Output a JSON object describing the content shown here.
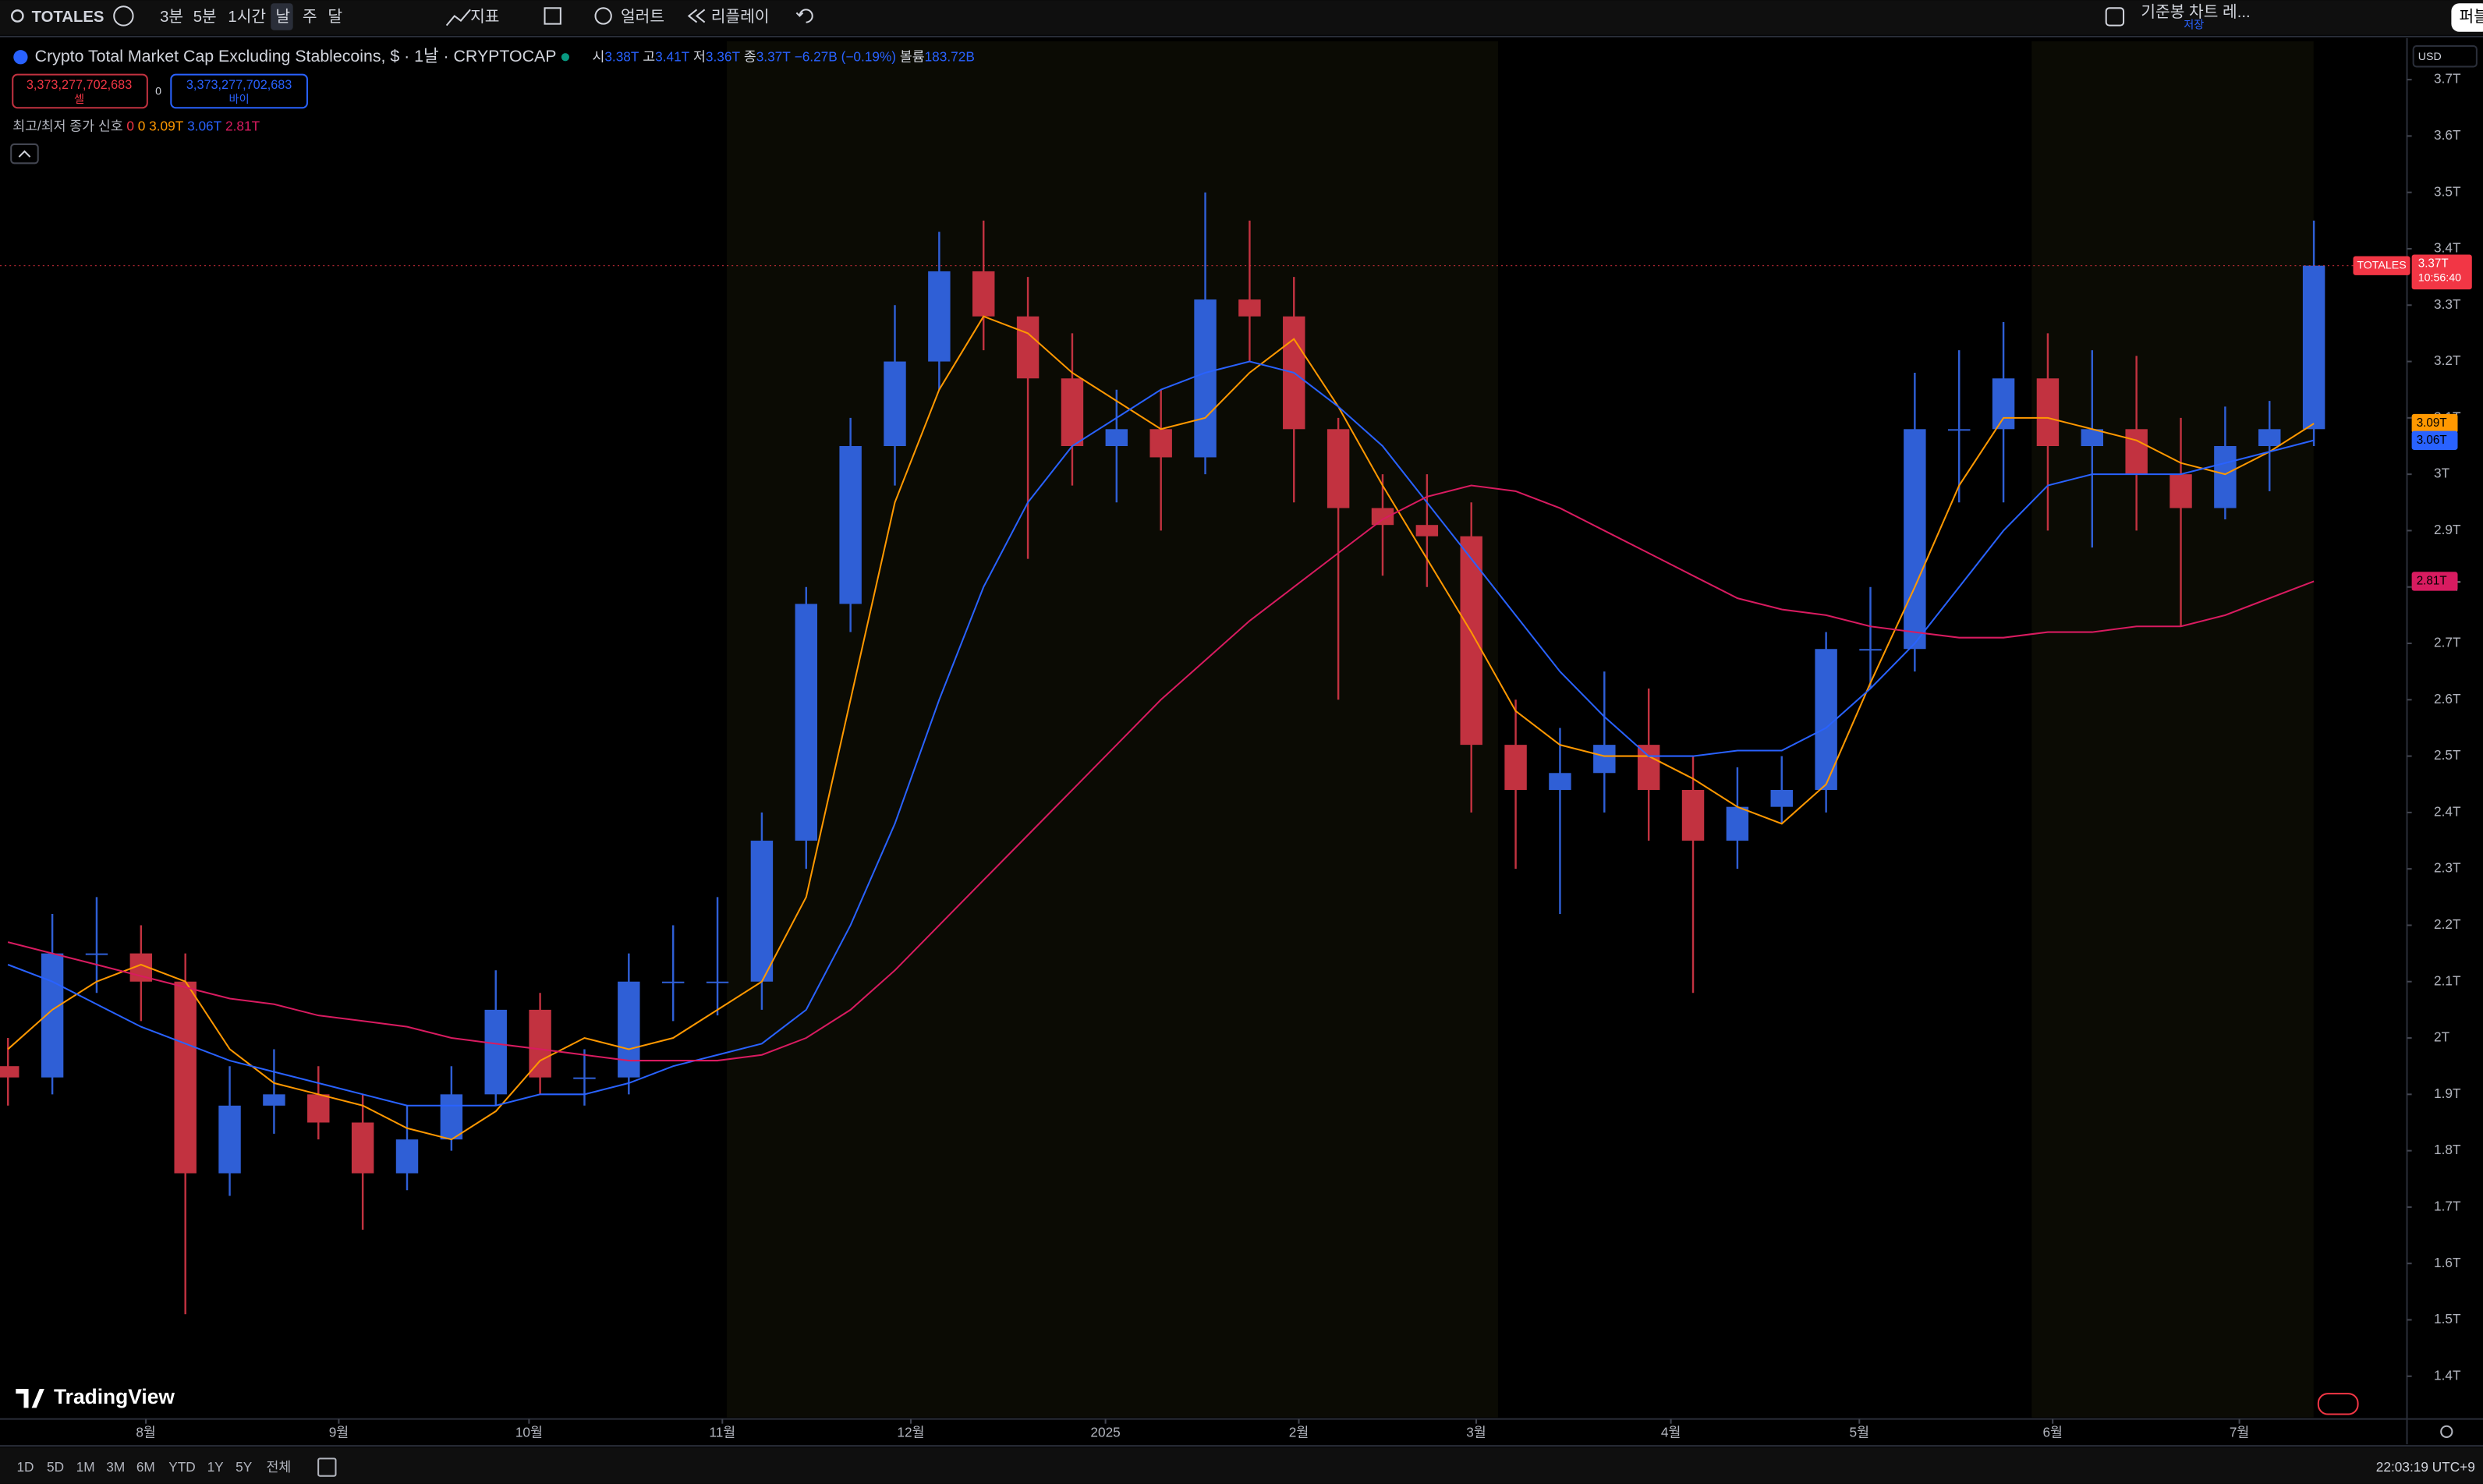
{
  "toolbar": {
    "symbol": "TOTALES",
    "intervals": [
      "3분",
      "5분",
      "1시간",
      "날",
      "주",
      "달"
    ],
    "indicators": "지표",
    "alert": "얼러트",
    "replay": "리플레이",
    "layout": "기준봉 차트 레...",
    "save": "저장",
    "publish": "퍼블"
  },
  "header": {
    "title": "Crypto Total Market Cap Excluding Stablecoins, $ · 1날 · CRYPTOCAP",
    "ohlc": [
      {
        "label": "시",
        "value": "3.38T"
      },
      {
        "label": "고",
        "value": "3.41T"
      },
      {
        "label": "저",
        "value": "3.36T"
      },
      {
        "label": "종",
        "value": "3.37T"
      }
    ],
    "change": "−6.27B (−0.19%)",
    "volume_label": "볼륨",
    "volume": "183.72B",
    "sell": {
      "price": "3,373,277,702,683",
      "label": "셀"
    },
    "spread": "0",
    "buy": {
      "price": "3,373,277,702,683",
      "label": "바이"
    },
    "indicator": {
      "name": "최고/최저 종가 신호",
      "values": [
        "0",
        "0",
        "3.09T",
        "3.06T",
        "2.81T"
      ]
    }
  },
  "currency": "USD",
  "price_badge": {
    "symbol": "TOTALES",
    "price": "3.37T",
    "countdown": "10:56:40"
  },
  "logo": "TradingView",
  "bottom": {
    "ranges": [
      "1D",
      "5D",
      "1M",
      "3M",
      "6M",
      "YTD",
      "1Y",
      "5Y",
      "전체"
    ],
    "clock": "22:03:19 UTC+9"
  },
  "chart_data": {
    "type": "candlestick",
    "x": [
      0,
      1,
      2,
      3,
      4,
      5,
      6,
      7,
      8,
      9,
      10,
      11,
      12,
      13,
      14,
      15,
      16,
      17,
      18,
      19,
      20,
      21,
      22,
      23,
      24,
      25,
      26,
      27,
      28,
      29,
      30,
      31,
      32,
      33,
      34,
      35,
      36,
      37,
      38,
      39,
      40,
      41,
      42,
      43,
      44,
      45,
      46,
      47,
      48,
      49,
      50,
      51,
      52
    ],
    "open": [
      1.95,
      1.93,
      2.15,
      2.15,
      2.1,
      1.76,
      1.88,
      1.9,
      1.85,
      1.76,
      1.82,
      1.9,
      2.05,
      1.93,
      1.93,
      2.1,
      2.1,
      2.1,
      2.35,
      2.77,
      3.05,
      3.2,
      3.36,
      3.28,
      3.17,
      3.05,
      3.08,
      3.03,
      3.31,
      3.28,
      3.08,
      2.94,
      2.91,
      2.89,
      2.52,
      2.44,
      2.47,
      2.52,
      2.44,
      2.35,
      2.41,
      2.44,
      2.69,
      2.69,
      3.08,
      3.08,
      3.17,
      3.05,
      3.08,
      3.0,
      2.94,
      3.05,
      3.08
    ],
    "high": [
      2.0,
      2.22,
      2.25,
      2.2,
      2.15,
      1.95,
      1.98,
      1.95,
      1.9,
      1.88,
      1.95,
      2.12,
      2.08,
      1.98,
      2.15,
      2.2,
      2.25,
      2.4,
      2.8,
      3.1,
      3.3,
      3.43,
      3.45,
      3.35,
      3.25,
      3.15,
      3.15,
      3.5,
      3.45,
      3.35,
      3.1,
      3.0,
      3.0,
      2.95,
      2.6,
      2.55,
      2.65,
      2.62,
      2.5,
      2.48,
      2.5,
      2.72,
      2.8,
      3.18,
      3.22,
      3.27,
      3.25,
      3.22,
      3.21,
      3.1,
      3.12,
      3.13,
      3.45
    ],
    "low": [
      1.88,
      1.9,
      2.08,
      2.03,
      1.51,
      1.72,
      1.83,
      1.82,
      1.66,
      1.73,
      1.8,
      1.88,
      1.9,
      1.88,
      1.9,
      2.03,
      2.04,
      2.05,
      2.3,
      2.72,
      2.98,
      3.15,
      3.22,
      2.85,
      2.98,
      2.95,
      2.9,
      3.0,
      3.2,
      2.95,
      2.6,
      2.82,
      2.8,
      2.4,
      2.3,
      2.22,
      2.4,
      2.35,
      2.08,
      2.3,
      2.38,
      2.4,
      2.62,
      2.65,
      2.95,
      2.95,
      2.9,
      2.87,
      2.9,
      2.73,
      2.92,
      2.97,
      3.05
    ],
    "close": [
      1.93,
      2.15,
      2.15,
      2.1,
      1.76,
      1.88,
      1.9,
      1.85,
      1.76,
      1.82,
      1.9,
      2.05,
      1.93,
      1.93,
      2.1,
      2.1,
      2.1,
      2.35,
      2.77,
      3.05,
      3.2,
      3.36,
      3.28,
      3.17,
      3.05,
      3.08,
      3.03,
      3.31,
      3.28,
      3.08,
      2.94,
      2.91,
      2.89,
      2.52,
      2.44,
      2.47,
      2.52,
      2.44,
      2.35,
      2.41,
      2.44,
      2.69,
      2.69,
      3.08,
      3.08,
      3.17,
      3.05,
      3.08,
      3.0,
      2.94,
      3.05,
      3.08,
      3.37
    ],
    "up_color": "#2f5fd6",
    "down_color": "#c23240",
    "last_price_color": "#f23645",
    "overlays": [
      {
        "color": "#ff9800",
        "badge": "3.09T",
        "values": [
          1.98,
          2.05,
          2.1,
          2.13,
          2.1,
          1.98,
          1.92,
          1.9,
          1.88,
          1.84,
          1.82,
          1.87,
          1.96,
          2.0,
          1.98,
          2.0,
          2.05,
          2.1,
          2.25,
          2.6,
          2.95,
          3.15,
          3.28,
          3.25,
          3.18,
          3.13,
          3.08,
          3.1,
          3.18,
          3.24,
          3.12,
          2.98,
          2.85,
          2.72,
          2.58,
          2.52,
          2.5,
          2.5,
          2.46,
          2.41,
          2.38,
          2.45,
          2.63,
          2.8,
          2.98,
          3.1,
          3.1,
          3.08,
          3.06,
          3.02,
          3.0,
          3.04,
          3.09
        ]
      },
      {
        "color": "#2962ff",
        "badge": "3.06T",
        "values": [
          2.13,
          2.1,
          2.06,
          2.02,
          1.99,
          1.96,
          1.94,
          1.92,
          1.9,
          1.88,
          1.88,
          1.88,
          1.9,
          1.9,
          1.92,
          1.95,
          1.97,
          1.99,
          2.05,
          2.2,
          2.38,
          2.6,
          2.8,
          2.95,
          3.05,
          3.1,
          3.15,
          3.18,
          3.2,
          3.18,
          3.12,
          3.05,
          2.95,
          2.85,
          2.75,
          2.65,
          2.57,
          2.5,
          2.5,
          2.51,
          2.51,
          2.55,
          2.62,
          2.7,
          2.8,
          2.9,
          2.98,
          3.0,
          3.0,
          3.0,
          3.02,
          3.04,
          3.06
        ]
      },
      {
        "color": "#d81b60",
        "badge": "2.81T",
        "values": [
          2.17,
          2.15,
          2.13,
          2.11,
          2.09,
          2.07,
          2.06,
          2.04,
          2.03,
          2.02,
          2.0,
          1.99,
          1.98,
          1.97,
          1.96,
          1.96,
          1.96,
          1.97,
          2.0,
          2.05,
          2.12,
          2.2,
          2.28,
          2.36,
          2.44,
          2.52,
          2.6,
          2.67,
          2.74,
          2.8,
          2.86,
          2.92,
          2.96,
          2.98,
          2.97,
          2.94,
          2.9,
          2.86,
          2.82,
          2.78,
          2.76,
          2.75,
          2.73,
          2.72,
          2.71,
          2.71,
          2.72,
          2.72,
          2.73,
          2.73,
          2.75,
          2.78,
          2.81
        ]
      }
    ],
    "xlim": [
      -0.18,
      54.1
    ],
    "xticks": [
      {
        "value": 3.11,
        "label": "8월"
      },
      {
        "value": 7.46,
        "label": "9월"
      },
      {
        "value": 11.75,
        "label": "10월"
      },
      {
        "value": 16.11,
        "label": "11월"
      },
      {
        "value": 20.36,
        "label": "12월"
      },
      {
        "value": 24.75,
        "label": "2025"
      },
      {
        "value": 29.11,
        "label": "2월"
      },
      {
        "value": 33.11,
        "label": "3월"
      },
      {
        "value": 37.5,
        "label": "4월"
      },
      {
        "value": 41.75,
        "label": "5월"
      },
      {
        "value": 46.11,
        "label": "6월"
      },
      {
        "value": 50.32,
        "label": "7월"
      }
    ],
    "ylim": [
      1.327,
      3.768
    ],
    "yticks": [
      {
        "value": 1.4,
        "label": "1.4T"
      },
      {
        "value": 1.5,
        "label": "1.5T"
      },
      {
        "value": 1.6,
        "label": "1.6T"
      },
      {
        "value": 1.7,
        "label": "1.7T"
      },
      {
        "value": 1.8,
        "label": "1.8T"
      },
      {
        "value": 1.9,
        "label": "1.9T"
      },
      {
        "value": 2,
        "label": "2T"
      },
      {
        "value": 2.1,
        "label": "2.1T"
      },
      {
        "value": 2.2,
        "label": "2.2T"
      },
      {
        "value": 2.3,
        "label": "2.3T"
      },
      {
        "value": 2.4,
        "label": "2.4T"
      },
      {
        "value": 2.5,
        "label": "2.5T"
      },
      {
        "value": 2.6,
        "label": "2.6T"
      },
      {
        "value": 2.7,
        "label": "2.7T"
      },
      {
        "value": 2.8,
        "label": "2.8T"
      },
      {
        "value": 2.9,
        "label": "2.9T"
      },
      {
        "value": 3,
        "label": "3T"
      },
      {
        "value": 3.1,
        "label": "3.1T"
      },
      {
        "value": 3.2,
        "label": "3.2T"
      },
      {
        "value": 3.3,
        "label": "3.3T"
      },
      {
        "value": 3.4,
        "label": "3.4T"
      },
      {
        "value": 3.5,
        "label": "3.5T"
      },
      {
        "value": 3.6,
        "label": "3.6T"
      },
      {
        "value": 3.7,
        "label": "3.7T"
      }
    ],
    "grid": false
  }
}
